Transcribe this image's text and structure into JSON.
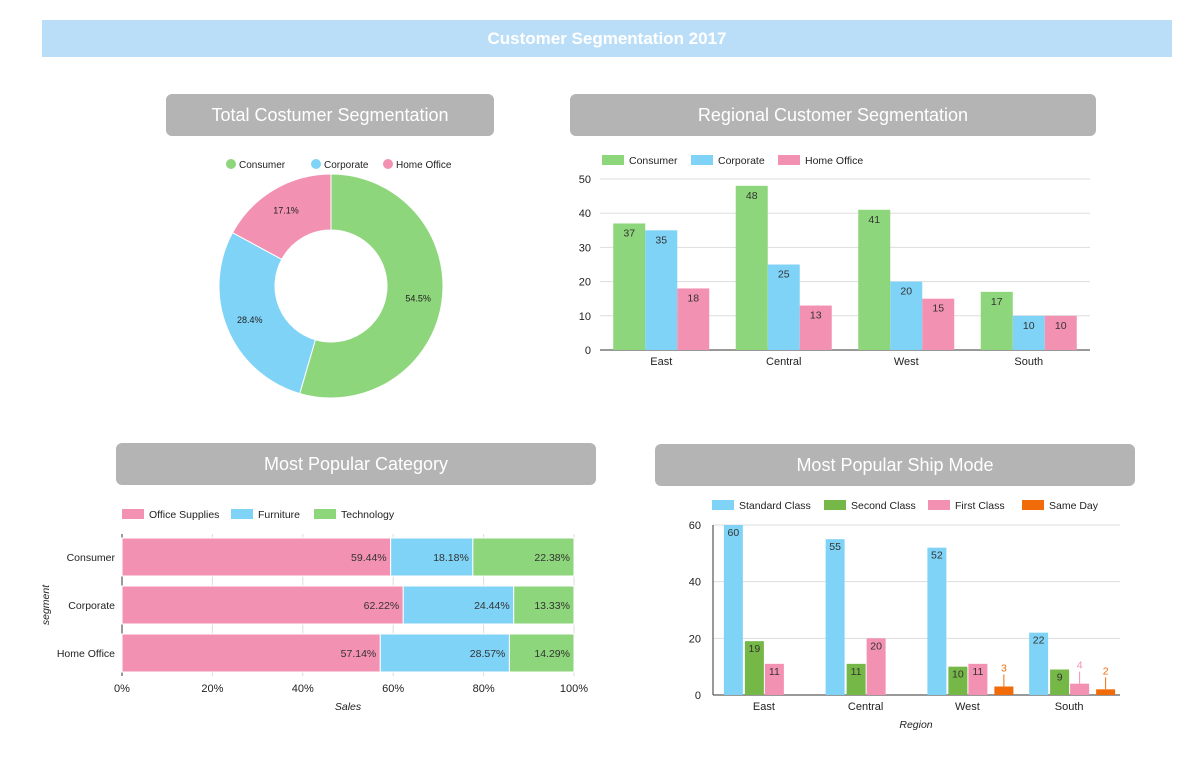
{
  "dashboard": {
    "title": "Customer Segmentation 2017",
    "panels": [
      "Total Costumer Segmentation",
      "Regional Customer Segmentation",
      "Most Popular Category",
      "Most Popular Ship Mode"
    ]
  },
  "colors": {
    "banner": "#bbdef8",
    "panel_title_bg": "#b4b4b4",
    "green": "#8dd67b",
    "blue": "#7fd3f7",
    "pink": "#f391b3",
    "dark_green": "#76b847",
    "orange": "#f26b09"
  },
  "chart_data": [
    {
      "id": "total-segmentation",
      "type": "pie",
      "donut": true,
      "title": "Total Costumer Segmentation",
      "legend_position": "top",
      "labels": [
        "Consumer",
        "Corporate",
        "Home Office"
      ],
      "values": [
        54.5,
        28.4,
        17.1
      ],
      "value_labels": [
        "54.5%",
        "28.4%",
        "17.1%"
      ],
      "colors": [
        "#8dd67b",
        "#7fd3f7",
        "#f391b3"
      ]
    },
    {
      "id": "regional-segmentation",
      "type": "bar",
      "title": "Regional Customer Segmentation",
      "legend_position": "top",
      "categories": [
        "East",
        "Central",
        "West",
        "South"
      ],
      "series": [
        {
          "name": "Consumer",
          "color": "#8dd67b",
          "values": [
            37,
            48,
            41,
            17
          ]
        },
        {
          "name": "Corporate",
          "color": "#7fd3f7",
          "values": [
            35,
            25,
            20,
            10
          ]
        },
        {
          "name": "Home Office",
          "color": "#f391b3",
          "values": [
            18,
            13,
            15,
            10
          ]
        }
      ],
      "ylim": [
        0,
        50
      ],
      "yticks": [
        0,
        10,
        20,
        30,
        40,
        50
      ],
      "grid": true
    },
    {
      "id": "popular-category",
      "type": "bar",
      "orientation": "horizontal",
      "stacked": "percent",
      "title": "Most Popular Category",
      "legend_position": "top",
      "xlabel": "Sales",
      "ylabel": "segment",
      "categories": [
        "Consumer",
        "Corporate",
        "Home Office"
      ],
      "series": [
        {
          "name": "Office Supplies",
          "color": "#f391b3",
          "values": [
            59.44,
            62.22,
            57.14
          ],
          "labels": [
            "59.44%",
            "62.22%",
            "57.14%"
          ]
        },
        {
          "name": "Furniture",
          "color": "#7fd3f7",
          "values": [
            18.18,
            24.44,
            28.57
          ],
          "labels": [
            "18.18%",
            "24.44%",
            "28.57%"
          ]
        },
        {
          "name": "Technology",
          "color": "#8dd67b",
          "values": [
            22.38,
            13.33,
            14.29
          ],
          "labels": [
            "22.38%",
            "13.33%",
            "14.29%"
          ]
        }
      ],
      "xticks": [
        "0%",
        "20%",
        "40%",
        "60%",
        "80%",
        "100%"
      ],
      "grid": true
    },
    {
      "id": "ship-mode",
      "type": "bar",
      "title": "Most Popular Ship Mode",
      "legend_position": "top",
      "xlabel": "Region",
      "categories": [
        "East",
        "Central",
        "West",
        "South"
      ],
      "series": [
        {
          "name": "Standard Class",
          "color": "#7fd3f7",
          "values": [
            60,
            55,
            52,
            22
          ]
        },
        {
          "name": "Second Class",
          "color": "#76b847",
          "values": [
            19,
            11,
            10,
            9
          ]
        },
        {
          "name": "First Class",
          "color": "#f391b3",
          "values": [
            11,
            20,
            11,
            4
          ]
        },
        {
          "name": "Same Day",
          "color": "#f26b09",
          "values": [
            null,
            null,
            3,
            2
          ]
        }
      ],
      "ylim": [
        0,
        60
      ],
      "yticks": [
        0,
        20,
        40,
        60
      ],
      "grid": true
    }
  ]
}
